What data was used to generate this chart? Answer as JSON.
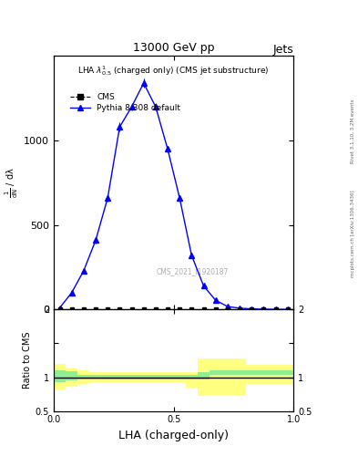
{
  "title_top": "13000 GeV pp",
  "title_right": "Jets",
  "plot_title": "LHA $\\lambda^{1}_{0.5}$ (charged only) (CMS jet substructure)",
  "right_label_top": "Rivet 3.1.10, 3.2M events",
  "right_label_bottom": "mcplots.cern.ch [arXiv:1306.3436]",
  "watermark": "CMS_2021_I1920187",
  "xlabel": "LHA (charged-only)",
  "ylabel_main": "$\\frac{1}{\\mathrm{d}N}$ / $\\mathrm{d}\\lambda$",
  "ylabel_ratio": "Ratio to CMS",
  "ylim_main": [
    0,
    1500
  ],
  "ylim_ratio": [
    0.5,
    2.0
  ],
  "yticks_main": [
    0,
    500,
    1000
  ],
  "xlim": [
    0,
    1.0
  ],
  "xticks": [
    0.0,
    0.5,
    1.0
  ],
  "cms_x": [
    0.025,
    0.075,
    0.125,
    0.175,
    0.225,
    0.275,
    0.325,
    0.375,
    0.425,
    0.475,
    0.525,
    0.575,
    0.625,
    0.675,
    0.725,
    0.775,
    0.825,
    0.875,
    0.925,
    0.975
  ],
  "cms_y": [
    0,
    0,
    0,
    0,
    0,
    0,
    0,
    0,
    0,
    0,
    0,
    0,
    0,
    0,
    0,
    0,
    0,
    0,
    0,
    0
  ],
  "pythia_x": [
    0.025,
    0.075,
    0.125,
    0.175,
    0.225,
    0.275,
    0.325,
    0.375,
    0.425,
    0.475,
    0.525,
    0.575,
    0.625,
    0.675,
    0.725,
    0.775,
    0.825,
    0.875,
    0.925,
    0.975
  ],
  "pythia_y": [
    10,
    100,
    230,
    410,
    660,
    1080,
    1200,
    1340,
    1200,
    950,
    660,
    320,
    140,
    55,
    18,
    8,
    4,
    2,
    1,
    1
  ],
  "pythia_yerr": [
    4,
    8,
    12,
    18,
    22,
    28,
    22,
    28,
    22,
    20,
    18,
    14,
    9,
    7,
    4,
    3,
    2,
    1,
    1,
    1
  ],
  "ratio_x_edges": [
    0.0,
    0.05,
    0.1,
    0.15,
    0.2,
    0.25,
    0.3,
    0.35,
    0.4,
    0.45,
    0.5,
    0.55,
    0.6,
    0.65,
    0.7,
    0.75,
    0.8,
    0.85,
    0.9,
    0.95,
    1.0
  ],
  "ratio_green_low": [
    0.92,
    0.95,
    0.97,
    0.97,
    0.97,
    0.97,
    0.97,
    0.97,
    0.97,
    0.97,
    0.97,
    0.97,
    0.97,
    1.04,
    1.04,
    1.04,
    1.04,
    1.04,
    1.04,
    1.04
  ],
  "ratio_green_high": [
    1.1,
    1.09,
    1.04,
    1.04,
    1.04,
    1.04,
    1.04,
    1.04,
    1.04,
    1.04,
    1.04,
    1.04,
    1.08,
    1.1,
    1.1,
    1.1,
    1.1,
    1.1,
    1.1,
    1.1
  ],
  "ratio_yellow_low": [
    0.82,
    0.86,
    0.9,
    0.93,
    0.93,
    0.93,
    0.93,
    0.93,
    0.93,
    0.93,
    0.93,
    0.85,
    0.72,
    0.72,
    0.72,
    0.72,
    0.9,
    0.9,
    0.9,
    0.9
  ],
  "ratio_yellow_high": [
    1.2,
    1.13,
    1.1,
    1.08,
    1.08,
    1.08,
    1.08,
    1.08,
    1.08,
    1.08,
    1.08,
    1.08,
    1.28,
    1.28,
    1.28,
    1.28,
    1.18,
    1.18,
    1.18,
    1.18
  ],
  "cms_color": "black",
  "pythia_color": "blue",
  "green_color": "#90EE90",
  "yellow_color": "#FFFF80",
  "background_color": "#ffffff"
}
